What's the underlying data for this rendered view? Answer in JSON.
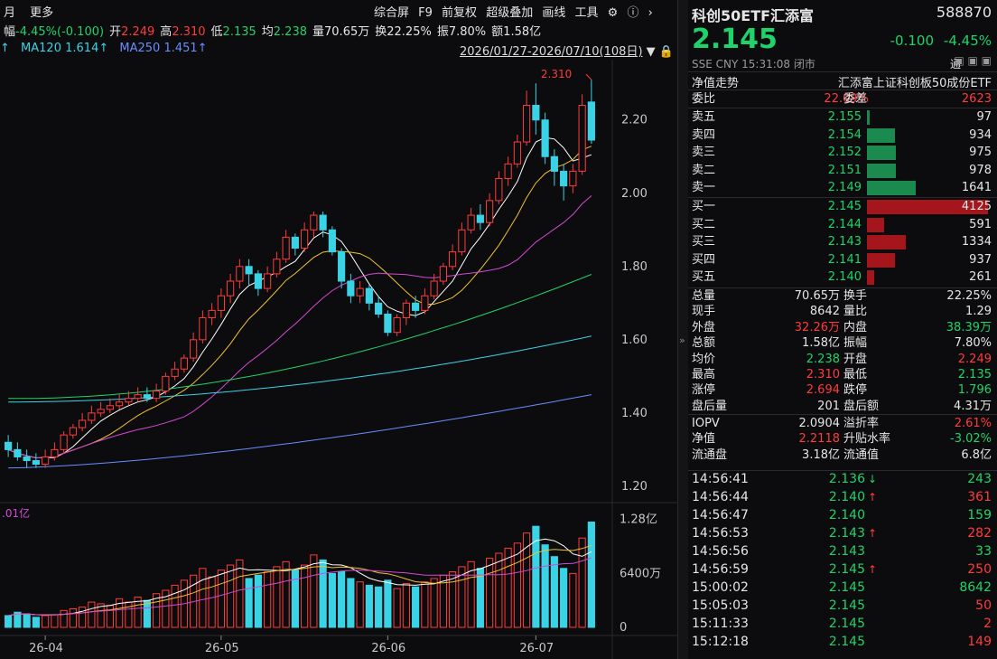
{
  "topbar": {
    "left": [
      "月",
      "更多"
    ],
    "right": [
      "综合屏",
      "F9",
      "前复权",
      "超级叠加",
      "画线",
      "工具"
    ]
  },
  "stats": [
    {
      "label": "幅",
      "value": "-4.45%(-0.100)",
      "color": "grn"
    },
    {
      "label": "开",
      "value": "2.249",
      "color": "red"
    },
    {
      "label": "高",
      "value": "2.310",
      "color": "red"
    },
    {
      "label": "低",
      "value": "2.135",
      "color": "grn"
    },
    {
      "label": "均",
      "value": "2.238",
      "color": "grn"
    },
    {
      "label": "量",
      "value": "70.65万",
      "color": "wht"
    },
    {
      "label": "换",
      "value": "22.25%",
      "color": "wht"
    },
    {
      "label": "振",
      "value": "7.80%",
      "color": "wht"
    },
    {
      "label": "额",
      "value": "1.58亿",
      "color": "wht"
    }
  ],
  "ma": {
    "ma120_label": "MA120",
    "ma120": "1.614↑",
    "ma250_label": "MA250",
    "ma250": "1.451↑",
    "lead": "↑"
  },
  "range": "2026/01/27-2026/07/10(108日)",
  "chart": {
    "y_ticks": [
      "2.20",
      "2.00",
      "1.80",
      "1.60",
      "1.40",
      "1.20"
    ],
    "high_label": "2.310",
    "vol_label": ".01亿",
    "vol_ticks": [
      "1.28亿",
      "6400万",
      "0"
    ],
    "x_ticks": [
      "26-04",
      "26-05",
      "26-06",
      "26-07"
    ]
  },
  "chart_data": {
    "type": "candlestick",
    "y_range": [
      1.18,
      2.34
    ],
    "candles": [
      [
        1.32,
        1.3,
        1.34,
        1.28
      ],
      [
        1.3,
        1.28,
        1.32,
        1.27
      ],
      [
        1.28,
        1.27,
        1.3,
        1.25
      ],
      [
        1.27,
        1.26,
        1.29,
        1.25
      ],
      [
        1.26,
        1.28,
        1.3,
        1.25
      ],
      [
        1.28,
        1.3,
        1.32,
        1.27
      ],
      [
        1.3,
        1.34,
        1.35,
        1.29
      ],
      [
        1.34,
        1.36,
        1.37,
        1.33
      ],
      [
        1.36,
        1.38,
        1.4,
        1.35
      ],
      [
        1.38,
        1.4,
        1.42,
        1.37
      ],
      [
        1.4,
        1.41,
        1.43,
        1.39
      ],
      [
        1.41,
        1.42,
        1.44,
        1.4
      ],
      [
        1.42,
        1.43,
        1.45,
        1.41
      ],
      [
        1.43,
        1.44,
        1.46,
        1.42
      ],
      [
        1.44,
        1.45,
        1.47,
        1.43
      ],
      [
        1.45,
        1.44,
        1.47,
        1.43
      ],
      [
        1.44,
        1.46,
        1.48,
        1.43
      ],
      [
        1.46,
        1.5,
        1.51,
        1.45
      ],
      [
        1.5,
        1.52,
        1.54,
        1.49
      ],
      [
        1.52,
        1.55,
        1.56,
        1.51
      ],
      [
        1.55,
        1.6,
        1.62,
        1.54
      ],
      [
        1.6,
        1.66,
        1.68,
        1.59
      ],
      [
        1.66,
        1.68,
        1.7,
        1.64
      ],
      [
        1.68,
        1.72,
        1.74,
        1.66
      ],
      [
        1.72,
        1.76,
        1.78,
        1.7
      ],
      [
        1.76,
        1.8,
        1.82,
        1.74
      ],
      [
        1.8,
        1.78,
        1.82,
        1.75
      ],
      [
        1.78,
        1.74,
        1.79,
        1.72
      ],
      [
        1.74,
        1.78,
        1.8,
        1.73
      ],
      [
        1.78,
        1.82,
        1.84,
        1.77
      ],
      [
        1.82,
        1.88,
        1.9,
        1.81
      ],
      [
        1.88,
        1.85,
        1.89,
        1.83
      ],
      [
        1.85,
        1.9,
        1.92,
        1.84
      ],
      [
        1.9,
        1.94,
        1.95,
        1.88
      ],
      [
        1.94,
        1.9,
        1.95,
        1.88
      ],
      [
        1.9,
        1.84,
        1.91,
        1.83
      ],
      [
        1.84,
        1.76,
        1.85,
        1.74
      ],
      [
        1.76,
        1.72,
        1.78,
        1.7
      ],
      [
        1.72,
        1.74,
        1.76,
        1.7
      ],
      [
        1.74,
        1.7,
        1.75,
        1.68
      ],
      [
        1.7,
        1.67,
        1.72,
        1.66
      ],
      [
        1.67,
        1.62,
        1.68,
        1.61
      ],
      [
        1.62,
        1.66,
        1.67,
        1.61
      ],
      [
        1.66,
        1.7,
        1.71,
        1.64
      ],
      [
        1.7,
        1.68,
        1.72,
        1.66
      ],
      [
        1.68,
        1.72,
        1.74,
        1.67
      ],
      [
        1.72,
        1.76,
        1.78,
        1.71
      ],
      [
        1.76,
        1.8,
        1.81,
        1.75
      ],
      [
        1.8,
        1.84,
        1.86,
        1.79
      ],
      [
        1.84,
        1.9,
        1.92,
        1.83
      ],
      [
        1.9,
        1.94,
        1.96,
        1.89
      ],
      [
        1.94,
        1.92,
        1.97,
        1.9
      ],
      [
        1.92,
        1.98,
        2.0,
        1.91
      ],
      [
        1.98,
        2.04,
        2.06,
        1.97
      ],
      [
        2.04,
        2.08,
        2.1,
        2.02
      ],
      [
        2.08,
        2.14,
        2.16,
        2.07
      ],
      [
        2.14,
        2.24,
        2.28,
        2.13
      ],
      [
        2.24,
        2.2,
        2.3,
        2.16
      ],
      [
        2.2,
        2.1,
        2.22,
        2.08
      ],
      [
        2.1,
        2.06,
        2.12,
        2.02
      ],
      [
        2.06,
        2.02,
        2.08,
        1.98
      ],
      [
        2.02,
        2.06,
        2.08,
        2.0
      ],
      [
        2.06,
        2.24,
        2.27,
        2.05
      ],
      [
        2.249,
        2.145,
        2.31,
        2.135
      ]
    ],
    "volumes": [
      0.14,
      0.18,
      0.16,
      0.12,
      0.14,
      0.15,
      0.2,
      0.22,
      0.24,
      0.3,
      0.28,
      0.26,
      0.34,
      0.3,
      0.36,
      0.32,
      0.4,
      0.44,
      0.5,
      0.56,
      0.62,
      0.7,
      0.6,
      0.68,
      0.74,
      0.8,
      0.58,
      0.62,
      0.66,
      0.72,
      0.78,
      0.68,
      0.74,
      0.86,
      0.8,
      0.64,
      0.66,
      0.58,
      0.54,
      0.5,
      0.48,
      0.56,
      0.46,
      0.52,
      0.48,
      0.54,
      0.58,
      0.62,
      0.66,
      0.72,
      0.78,
      0.7,
      0.82,
      0.88,
      0.94,
      1.0,
      1.12,
      1.2,
      0.98,
      0.84,
      0.7,
      0.64,
      1.06,
      1.25
    ],
    "ma_lines": [
      {
        "name": "MA5",
        "color": "#ffffff"
      },
      {
        "name": "MA10",
        "color": "#f2c12e"
      },
      {
        "name": "MA20",
        "color": "#d24ad2"
      },
      {
        "name": "MA60",
        "color": "#1fd36a"
      },
      {
        "name": "MA120",
        "color": "#3ad3e6"
      },
      {
        "name": "MA250",
        "color": "#6a8cff"
      }
    ],
    "colors": {
      "up": "#ff3b3b",
      "down": "#3ad3e6"
    }
  },
  "quote": {
    "name": "科创50ETF汇添富",
    "code": "588870",
    "price": "2.145",
    "change": "-0.100",
    "pct": "-4.45%",
    "meta": "SSE  CNY  15:31:08  闭市",
    "tool": "通",
    "nav_label": "净值走势",
    "nav_name": "汇添富上证科创板50成份ETF",
    "weibi_label": "委比",
    "weibi": "22.09%",
    "weicha_label": "委差",
    "weicha": "2623"
  },
  "asks": [
    {
      "label": "卖五",
      "price": "2.155",
      "vol": "97",
      "w": 0.02
    },
    {
      "label": "卖四",
      "price": "2.154",
      "vol": "934",
      "w": 0.23
    },
    {
      "label": "卖三",
      "price": "2.152",
      "vol": "975",
      "w": 0.24
    },
    {
      "label": "卖二",
      "price": "2.151",
      "vol": "978",
      "w": 0.24
    },
    {
      "label": "卖一",
      "price": "2.149",
      "vol": "1641",
      "w": 0.4
    }
  ],
  "bids": [
    {
      "label": "买一",
      "price": "2.145",
      "vol": "4125",
      "w": 1.0
    },
    {
      "label": "买二",
      "price": "2.144",
      "vol": "591",
      "w": 0.14
    },
    {
      "label": "买三",
      "price": "2.143",
      "vol": "1334",
      "w": 0.32
    },
    {
      "label": "买四",
      "price": "2.141",
      "vol": "937",
      "w": 0.23
    },
    {
      "label": "买五",
      "price": "2.140",
      "vol": "261",
      "w": 0.06
    }
  ],
  "details": [
    {
      "l1": "总量",
      "v1": "70.65万",
      "c1": "wht",
      "l2": "换手",
      "v2": "22.25%",
      "c2": "wht"
    },
    {
      "l1": "现手",
      "v1": "8642",
      "c1": "wht",
      "l2": "量比",
      "v2": "1.29",
      "c2": "wht"
    },
    {
      "l1": "外盘",
      "v1": "32.26万",
      "c1": "red",
      "l2": "内盘",
      "v2": "38.39万",
      "c2": "grn"
    },
    {
      "l1": "总额",
      "v1": "1.58亿",
      "c1": "wht",
      "l2": "振幅",
      "v2": "7.80%",
      "c2": "wht"
    },
    {
      "l1": "均价",
      "v1": "2.238",
      "c1": "grn",
      "l2": "开盘",
      "v2": "2.249",
      "c2": "red"
    },
    {
      "l1": "最高",
      "v1": "2.310",
      "c1": "red",
      "l2": "最低",
      "v2": "2.135",
      "c2": "grn"
    },
    {
      "l1": "涨停",
      "v1": "2.694",
      "c1": "red",
      "l2": "跌停",
      "v2": "1.796",
      "c2": "grn"
    },
    {
      "l1": "盘后量",
      "v1": "201",
      "c1": "wht",
      "l2": "盘后额",
      "v2": "4.31万",
      "c2": "wht"
    }
  ],
  "iopv": [
    {
      "l1": "IOPV",
      "v1": "2.0904",
      "c1": "wht",
      "l2": "溢折率",
      "v2": "2.61%",
      "c2": "red"
    },
    {
      "l1": "净值",
      "v1": "2.2118",
      "c1": "red",
      "l2": "升贴水率",
      "v2": "-3.02%",
      "c2": "grn"
    },
    {
      "l1": "流通盘",
      "v1": "3.18亿",
      "c1": "wht",
      "l2": "流通值",
      "v2": "6.8亿",
      "c2": "wht"
    }
  ],
  "ticks": [
    {
      "time": "14:56:41",
      "price": "2.136",
      "arrow": "↓",
      "arrowc": "grn",
      "vol": "243",
      "volc": "grn"
    },
    {
      "time": "14:56:44",
      "price": "2.140",
      "arrow": "↑",
      "arrowc": "red",
      "vol": "361",
      "volc": "red"
    },
    {
      "time": "14:56:47",
      "price": "2.140",
      "arrow": "",
      "arrowc": "",
      "vol": "159",
      "volc": "grn"
    },
    {
      "time": "14:56:53",
      "price": "2.143",
      "arrow": "↑",
      "arrowc": "red",
      "vol": "282",
      "volc": "red"
    },
    {
      "time": "14:56:56",
      "price": "2.143",
      "arrow": "",
      "arrowc": "",
      "vol": "33",
      "volc": "grn"
    },
    {
      "time": "14:56:59",
      "price": "2.145",
      "arrow": "↑",
      "arrowc": "red",
      "vol": "250",
      "volc": "red"
    },
    {
      "time": "15:00:02",
      "price": "2.145",
      "arrow": "",
      "arrowc": "",
      "vol": "8642",
      "volc": "grn"
    },
    {
      "time": "15:05:03",
      "price": "2.145",
      "arrow": "",
      "arrowc": "",
      "vol": "50",
      "volc": "red"
    },
    {
      "time": "15:11:33",
      "price": "2.145",
      "arrow": "",
      "arrowc": "",
      "vol": "2",
      "volc": "red"
    },
    {
      "time": "15:12:18",
      "price": "2.145",
      "arrow": "",
      "arrowc": "",
      "vol": "149",
      "volc": "red"
    }
  ]
}
